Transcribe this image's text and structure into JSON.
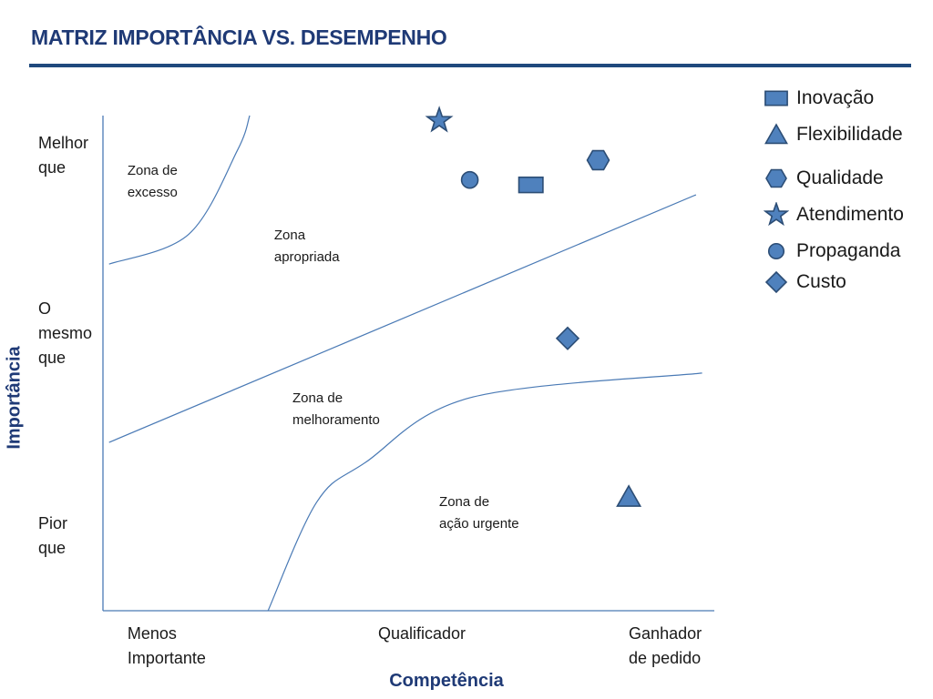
{
  "header": {
    "title": "MATRIZ IMPORTÂNCIA VS. DESEMPENHO"
  },
  "colors": {
    "title": "#1f3a76",
    "rule": "#1f497d",
    "marker_fill": "#4f81bd",
    "marker_stroke": "#2c4d75",
    "line": "#4a7ab5",
    "axis": "#4a7ab5"
  },
  "chart_data": {
    "type": "scatter",
    "title": "MATRIZ IMPORTÂNCIA VS. DESEMPENHO",
    "xlabel": "Competência",
    "ylabel": "Importância",
    "xlim": [
      0,
      10
    ],
    "ylim": [
      0,
      10
    ],
    "x_ticks": [
      {
        "label": "Menos\nImportante",
        "value": 0.4
      },
      {
        "label": "Qualificador",
        "value": 4.5
      },
      {
        "label": "Ganhador\nde pedido",
        "value": 8.6
      }
    ],
    "y_ticks": [
      {
        "label": "Melhor\nque",
        "value": 9.2
      },
      {
        "label": "O\nmesmo\nque",
        "value": 5.6
      },
      {
        "label": "Pior\nque",
        "value": 1.5
      }
    ],
    "legend_position": "top-right",
    "series": [
      {
        "name": "Inovação",
        "marker": "square-icon",
        "x": 7.0,
        "y": 8.6
      },
      {
        "name": "Flexibilidade",
        "marker": "triangle-icon",
        "x": 8.6,
        "y": 2.3
      },
      {
        "name": "Qualidade",
        "marker": "hexagon-icon",
        "x": 8.1,
        "y": 9.1
      },
      {
        "name": "Atendimento",
        "marker": "star-icon",
        "x": 5.5,
        "y": 9.9
      },
      {
        "name": "Propaganda",
        "marker": "circle-icon",
        "x": 6.0,
        "y": 8.7
      },
      {
        "name": "Custo",
        "marker": "diamond-icon",
        "x": 7.6,
        "y": 5.5
      }
    ],
    "zone_labels": [
      {
        "text": "Zona de\nexcesso",
        "x": 0.4,
        "y": 9.1
      },
      {
        "text": "Zona\napropriada",
        "x": 2.8,
        "y": 7.8
      },
      {
        "text": "Zona de\nmelhoramento",
        "x": 3.1,
        "y": 4.5
      },
      {
        "text": "Zona de\nação urgente",
        "x": 5.5,
        "y": 2.4
      }
    ],
    "boundaries": [
      {
        "name": "excess-boundary",
        "points": [
          [
            0.1,
            7.0
          ],
          [
            1.4,
            7.6
          ],
          [
            2.2,
            9.3
          ],
          [
            2.4,
            10.0
          ]
        ]
      },
      {
        "name": "diagonal-boundary",
        "points": [
          [
            0.1,
            3.4
          ],
          [
            9.7,
            8.4
          ]
        ]
      },
      {
        "name": "urgent-boundary",
        "points": [
          [
            2.7,
            0.0
          ],
          [
            3.5,
            2.2
          ],
          [
            4.3,
            3.0
          ],
          [
            6.0,
            4.3
          ],
          [
            9.8,
            4.8
          ]
        ]
      }
    ]
  }
}
